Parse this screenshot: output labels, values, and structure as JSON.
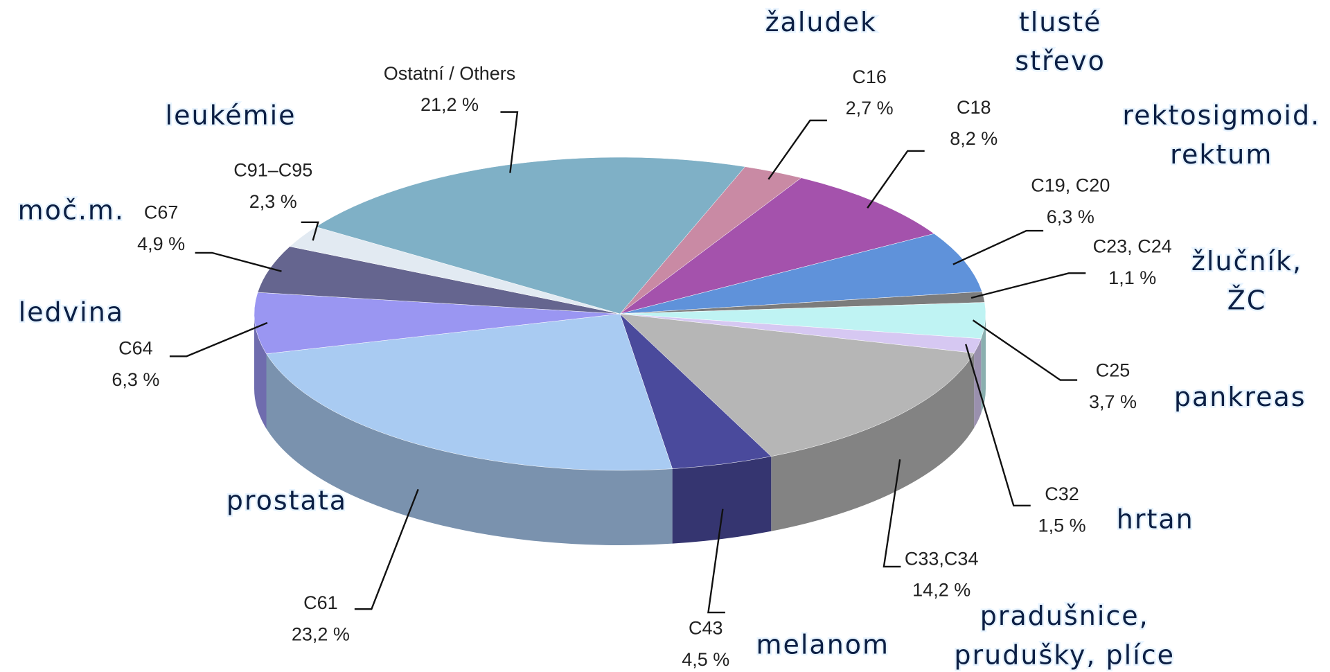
{
  "chart_data": {
    "type": "pie",
    "categories": [
      "C16",
      "C18",
      "C19, C20",
      "C23, C24",
      "C25",
      "C32",
      "C33,C34",
      "C43",
      "C61",
      "C64",
      "C67",
      "C91–C95",
      "Ostatní / Others"
    ],
    "values": [
      2.7,
      8.2,
      6.3,
      1.1,
      3.7,
      1.5,
      14.2,
      4.5,
      23.2,
      6.3,
      4.9,
      2.3,
      21.2
    ],
    "value_labels": [
      "2,7 %",
      "8,2 %",
      "6,3 %",
      "1,1 %",
      "3,7 %",
      "1,5 %",
      "14,2 %",
      "4,5 %",
      "23,2 %",
      "6,3 %",
      "4,9 %",
      "2,3 %",
      "21,2 %"
    ],
    "names": [
      [
        "žaludek"
      ],
      [
        "tlusté",
        "střevo"
      ],
      [
        "rektosigmoid.",
        "rektum"
      ],
      [
        "žlučník,",
        "ŽC"
      ],
      [
        "pankreas"
      ],
      [
        "hrtan"
      ],
      [
        "pradušnice,",
        "prudušky, plíce"
      ],
      [
        "melanom"
      ],
      [
        "prostata"
      ],
      [
        "ledvina"
      ],
      [
        "moč.m."
      ],
      [
        "leukémie"
      ],
      null
    ],
    "colors": [
      "#c98aa4",
      "#a452ac",
      "#5f92da",
      "#7c7c7c",
      "#bff3f3",
      "#d6c8f2",
      "#b6b6b6",
      "#4a4a9c",
      "#a9cbf2",
      "#9a96f2",
      "#65658f",
      "#e2eaf2",
      "#7fb0c6"
    ]
  }
}
